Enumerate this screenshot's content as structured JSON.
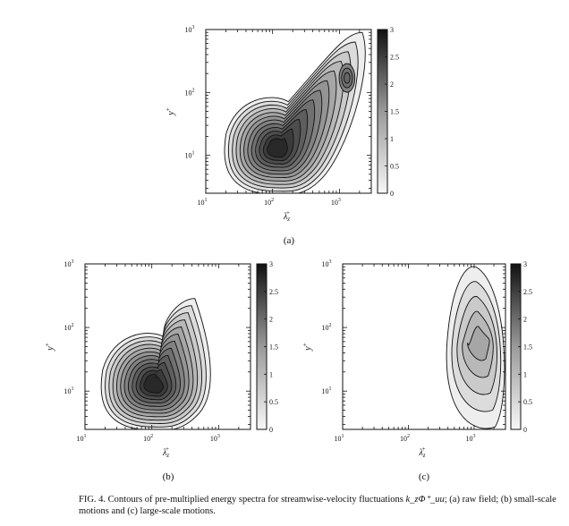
{
  "figure": {
    "caption_prefix": "FIG. 4.",
    "caption_before": "Contours of pre-multiplied energy spectra for streamwise-velocity fluctuations",
    "caption_formula": "k_zΦ⁺_uu",
    "caption_after": "; (a) raw field; (b) small-scale motions and (c) large-scale motions."
  },
  "chart_data": [
    {
      "type": "heatmap",
      "panel_label": "(a)",
      "xlabel": "λ_z^+",
      "ylabel": "y^+",
      "x_scale": "log",
      "y_scale": "log",
      "xlim": [
        10,
        3000
      ],
      "ylim": [
        2.5,
        1000
      ],
      "x_ticks": [
        "10^1",
        "10^2",
        "10^3"
      ],
      "y_ticks": [
        "10^1",
        "10^2",
        "10^3"
      ],
      "colorbar": {
        "min": 0,
        "max": 3,
        "ticks": [
          "0",
          "0.5",
          "1",
          "1.5",
          "2",
          "2.5",
          "3"
        ]
      },
      "peaks": [
        {
          "lambda_z": 120,
          "y": 13,
          "value": 2.9
        },
        {
          "lambda_z": 1300,
          "y": 170,
          "value": 2.0
        }
      ],
      "contour_levels": [
        0.1,
        0.35,
        0.6,
        0.85,
        1.1,
        1.35,
        1.6,
        1.85,
        2.1,
        2.35,
        2.6,
        2.85
      ]
    },
    {
      "type": "heatmap",
      "panel_label": "(b)",
      "xlabel": "λ_z^+",
      "ylabel": "y^+",
      "x_scale": "log",
      "y_scale": "log",
      "xlim": [
        10,
        3000
      ],
      "ylim": [
        2.5,
        1000
      ],
      "x_ticks": [
        "10^1",
        "10^2",
        "10^3"
      ],
      "y_ticks": [
        "10^1",
        "10^2",
        "10^3"
      ],
      "colorbar": {
        "min": 0,
        "max": 3,
        "ticks": [
          "0",
          "0.5",
          "1",
          "1.5",
          "2",
          "2.5",
          "3"
        ]
      },
      "peaks": [
        {
          "lambda_z": 110,
          "y": 13,
          "value": 2.9
        }
      ],
      "contour_levels": [
        0.1,
        0.35,
        0.6,
        0.85,
        1.1,
        1.35,
        1.6,
        1.85,
        2.1,
        2.35,
        2.6,
        2.85
      ]
    },
    {
      "type": "heatmap",
      "panel_label": "(c)",
      "xlabel": "λ_z^+",
      "ylabel": "y^+",
      "x_scale": "log",
      "y_scale": "log",
      "xlim": [
        10,
        3000
      ],
      "ylim": [
        2.5,
        1000
      ],
      "x_ticks": [
        "10^1",
        "10^2",
        "10^3"
      ],
      "y_ticks": [
        "10^1",
        "10^2",
        "10^3"
      ],
      "colorbar": {
        "min": 0,
        "max": 3,
        "ticks": [
          "0",
          "0.5",
          "1",
          "1.5",
          "2",
          "2.5",
          "3"
        ]
      },
      "peaks": [
        {
          "lambda_z": 1200,
          "y": 60,
          "value": 1.1
        }
      ],
      "contour_levels": [
        0.1,
        0.35,
        0.6,
        0.85,
        1.1
      ]
    }
  ]
}
